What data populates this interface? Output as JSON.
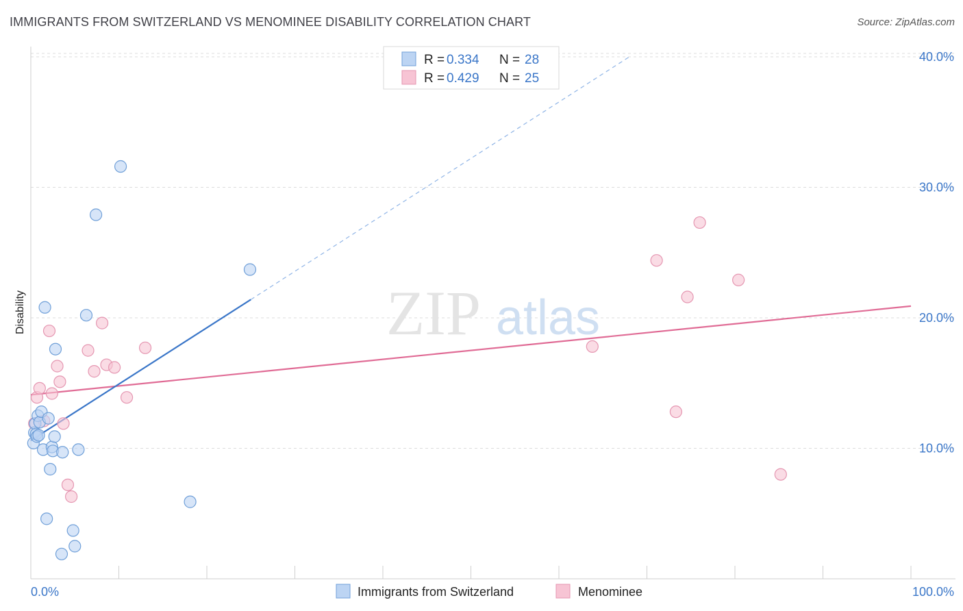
{
  "title": "IMMIGRANTS FROM SWITZERLAND VS MENOMINEE DISABILITY CORRELATION CHART",
  "source": "Source: ZipAtlas.com",
  "watermark": {
    "zip": "ZIP",
    "atlas": "atlas"
  },
  "colors": {
    "blue": "#3a76c8",
    "blue_fill": "#bcd4f3",
    "pink": "#e06b95",
    "pink_fill": "#f7c4d4",
    "grid": "#dcdcdc"
  },
  "chart_data": {
    "type": "scatter",
    "xlabel": "",
    "ylabel": "Disability",
    "xlim": [
      0,
      100
    ],
    "ylim": [
      0,
      42
    ],
    "x_tick_labels": [
      "0.0%",
      "100.0%"
    ],
    "y_ticks": [
      10,
      20,
      30,
      40
    ],
    "y_tick_labels": [
      "10.0%",
      "20.0%",
      "30.0%",
      "40.0%"
    ],
    "grid": true,
    "legend": {
      "position": "top-center",
      "entries": [
        {
          "r_label": "R =",
          "r_value": "0.334",
          "n_label": "N =",
          "n_value": "28"
        },
        {
          "r_label": "R =",
          "r_value": "0.429",
          "n_label": "N =",
          "n_value": "25"
        }
      ]
    },
    "series": [
      {
        "name": "Immigrants from Switzerland",
        "color": "#3a76c8",
        "points": [
          [
            0.3,
            10.4
          ],
          [
            0.4,
            11.2
          ],
          [
            0.5,
            11.9
          ],
          [
            0.6,
            11.1
          ],
          [
            0.7,
            10.9
          ],
          [
            0.8,
            12.5
          ],
          [
            0.9,
            11.0
          ],
          [
            1.0,
            12.0
          ],
          [
            1.2,
            12.8
          ],
          [
            1.4,
            9.9
          ],
          [
            1.6,
            20.8
          ],
          [
            1.8,
            4.6
          ],
          [
            2.0,
            12.3
          ],
          [
            2.2,
            8.4
          ],
          [
            2.4,
            10.1
          ],
          [
            2.5,
            9.8
          ],
          [
            2.7,
            10.9
          ],
          [
            2.8,
            17.6
          ],
          [
            3.6,
            9.7
          ],
          [
            4.8,
            3.7
          ],
          [
            5.0,
            2.5
          ],
          [
            5.4,
            9.9
          ],
          [
            6.3,
            20.2
          ],
          [
            7.4,
            27.9
          ],
          [
            10.2,
            31.6
          ],
          [
            18.1,
            5.9
          ],
          [
            24.9,
            23.7
          ],
          [
            3.5,
            1.9
          ]
        ],
        "trend": {
          "x": [
            0,
            25
          ],
          "y": [
            10.6,
            21.4
          ],
          "dashed_x": [
            25,
            68
          ],
          "dashed_y": [
            21.4,
            40.0
          ]
        }
      },
      {
        "name": "Menominee",
        "color": "#e06b95",
        "points": [
          [
            0.4,
            11.9
          ],
          [
            0.7,
            13.9
          ],
          [
            1.0,
            14.6
          ],
          [
            1.5,
            12.1
          ],
          [
            2.1,
            19.0
          ],
          [
            2.4,
            14.2
          ],
          [
            3.0,
            16.3
          ],
          [
            3.3,
            15.1
          ],
          [
            3.7,
            11.9
          ],
          [
            4.2,
            7.2
          ],
          [
            4.6,
            6.3
          ],
          [
            6.5,
            17.5
          ],
          [
            7.2,
            15.9
          ],
          [
            8.1,
            19.6
          ],
          [
            8.6,
            16.4
          ],
          [
            9.5,
            16.2
          ],
          [
            10.9,
            13.9
          ],
          [
            13.0,
            17.7
          ],
          [
            63.8,
            17.8
          ],
          [
            71.1,
            24.4
          ],
          [
            73.3,
            12.8
          ],
          [
            74.6,
            21.6
          ],
          [
            76.0,
            27.3
          ],
          [
            80.4,
            22.9
          ],
          [
            85.2,
            8.0
          ]
        ],
        "trend": {
          "x": [
            0,
            100
          ],
          "y": [
            14.1,
            20.9
          ]
        }
      }
    ]
  }
}
